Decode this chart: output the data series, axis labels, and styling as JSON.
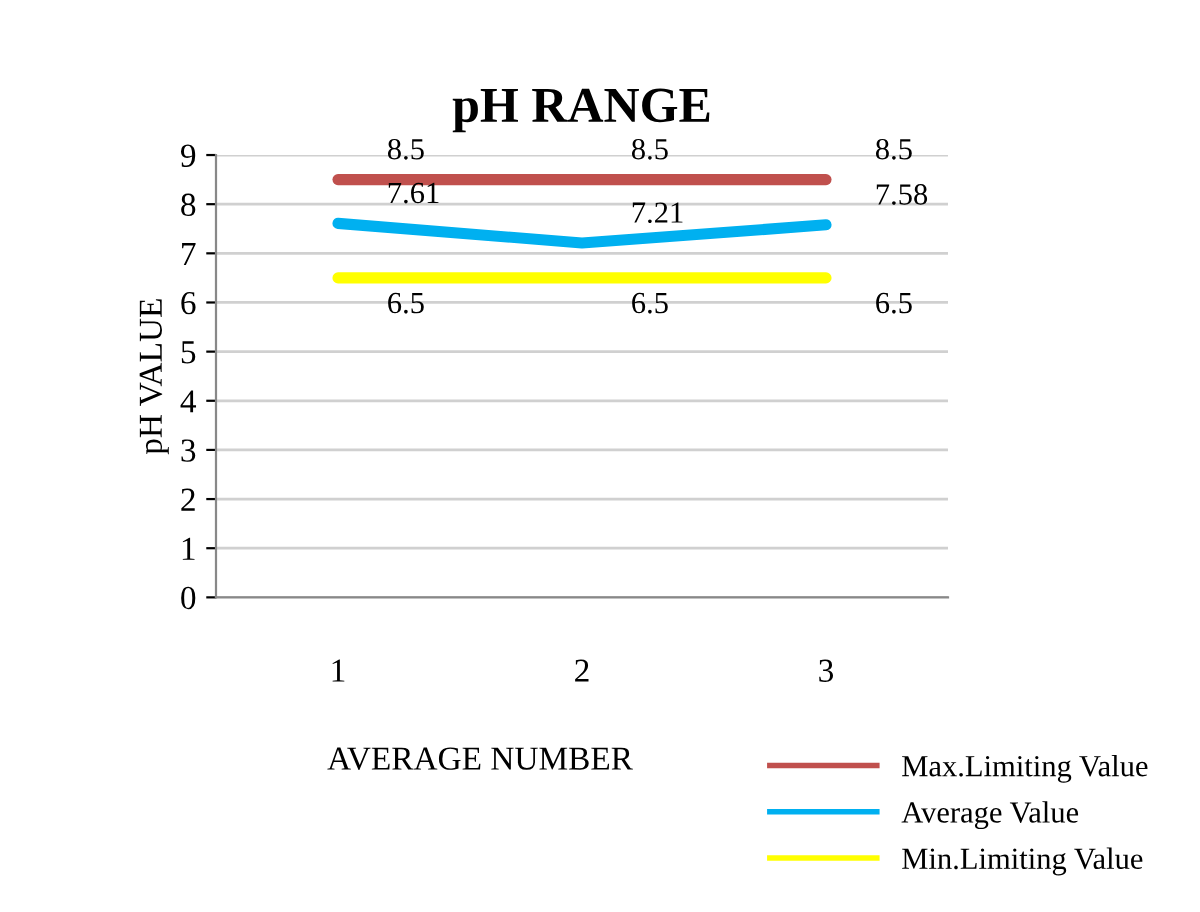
{
  "chart_data": {
    "type": "line",
    "title": "pH RANGE",
    "xlabel": "AVERAGE NUMBER",
    "ylabel": "pH VALUE",
    "categories": [
      "1",
      "2",
      "3"
    ],
    "series": [
      {
        "name": "Max.Limiting Value",
        "color": "#c0504d",
        "values": [
          8.5,
          8.5,
          8.5
        ]
      },
      {
        "name": "Average Value",
        "color": "#00b0f0",
        "values": [
          7.61,
          7.21,
          7.58
        ]
      },
      {
        "name": "Min.Limiting Value",
        "color": "#ffff00",
        "values": [
          6.5,
          6.5,
          6.5
        ]
      }
    ],
    "ylim": [
      0,
      9
    ],
    "yticks": [
      0,
      1,
      2,
      3,
      4,
      5,
      6,
      7,
      8,
      9
    ],
    "grid": "y",
    "legend": "bottom right",
    "data_labels": true
  }
}
